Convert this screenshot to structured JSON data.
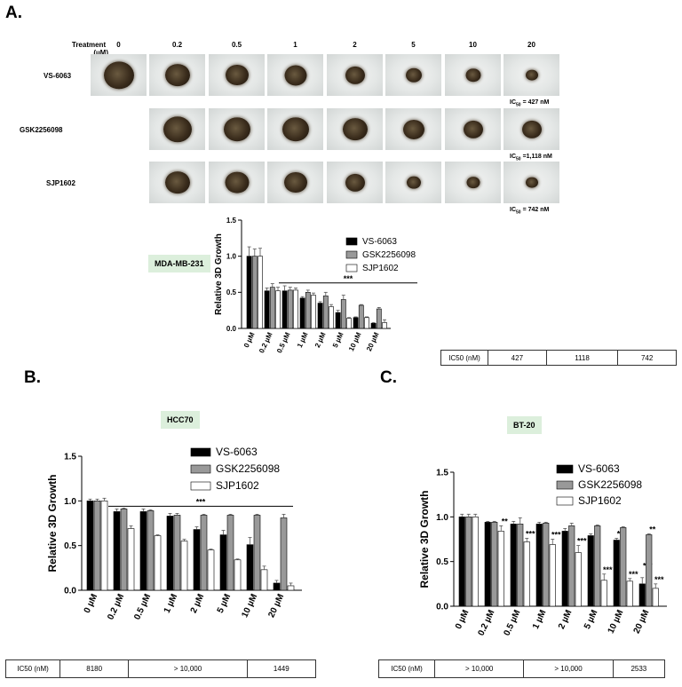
{
  "panels": {
    "a": "A.",
    "b": "B.",
    "c": "C."
  },
  "treatment_header": {
    "label_line1": "Treatment",
    "label_line2": "(µM)",
    "concentrations": [
      "0",
      "0.2",
      "0.5",
      "1",
      "2",
      "5",
      "10",
      "20"
    ]
  },
  "image_rows": [
    {
      "label": "VS-6063",
      "ic50_note": "= 427 nM"
    },
    {
      "label": "GSK2256098",
      "ic50_note": "=1,118 nM"
    },
    {
      "label": "SJP1602",
      "ic50_note": "= 742 nM"
    }
  ],
  "ic50_prefix": "IC",
  "ic50_sub": "50",
  "colors": {
    "vs": "#000000",
    "gsk": "#999999",
    "sjp": "#ffffff",
    "tag": "#dcefdc"
  },
  "chart_data": [
    {
      "type": "bar",
      "cell_line": "MDA-MB-231",
      "ylabel": "Relative 3D Growth",
      "ylim": [
        0,
        1.5
      ],
      "yticks": [
        "0.0",
        "0.5",
        "1.0",
        "1.5"
      ],
      "categories": [
        "0 µM",
        "0.2 µM",
        "0.5 µM",
        "1 µM",
        "2 µM",
        "5 µM",
        "10 µM",
        "20 µM"
      ],
      "series": [
        {
          "name": "VS-6063",
          "values": [
            1.0,
            0.52,
            0.52,
            0.42,
            0.35,
            0.22,
            0.15,
            0.07
          ],
          "errors": [
            0.13,
            0.04,
            0.07,
            0.02,
            0.02,
            0.03,
            0.01,
            0.01
          ]
        },
        {
          "name": "GSK2256098",
          "values": [
            1.0,
            0.57,
            0.53,
            0.5,
            0.45,
            0.4,
            0.32,
            0.27
          ],
          "errors": [
            0.1,
            0.05,
            0.04,
            0.03,
            0.05,
            0.06,
            0.01,
            0.02
          ]
        },
        {
          "name": "SJP1602",
          "values": [
            1.0,
            0.52,
            0.53,
            0.46,
            0.3,
            0.14,
            0.15,
            0.08
          ],
          "errors": [
            0.11,
            0.05,
            0.03,
            0.03,
            0.03,
            0.01,
            0.01,
            0.04
          ]
        }
      ],
      "significance": "***",
      "ic50_table": [
        "IC50 (nM)",
        "427",
        "1118",
        "742"
      ]
    },
    {
      "type": "bar",
      "cell_line": "HCC70",
      "ylabel": "Relative 3D Growth",
      "ylim": [
        0,
        1.5
      ],
      "yticks": [
        "0.0",
        "0.5",
        "1.0",
        "1.5"
      ],
      "categories": [
        "0 µM",
        "0.2 µM",
        "0.5 µM",
        "1 µM",
        "2 µM",
        "5 µM",
        "10 µM",
        "20 µM"
      ],
      "series": [
        {
          "name": "VS-6063",
          "values": [
            1.0,
            0.88,
            0.88,
            0.83,
            0.68,
            0.62,
            0.51,
            0.08
          ],
          "errors": [
            0.02,
            0.03,
            0.03,
            0.03,
            0.03,
            0.05,
            0.08,
            0.03
          ]
        },
        {
          "name": "GSK2256098",
          "values": [
            1.0,
            0.91,
            0.89,
            0.84,
            0.84,
            0.84,
            0.84,
            0.81
          ],
          "errors": [
            0.02,
            0.01,
            0.01,
            0.02,
            0.01,
            0.01,
            0.01,
            0.04
          ]
        },
        {
          "name": "SJP1602",
          "values": [
            1.0,
            0.69,
            0.61,
            0.55,
            0.45,
            0.34,
            0.23,
            0.05
          ],
          "errors": [
            0.03,
            0.03,
            0.01,
            0.02,
            0.01,
            0.01,
            0.04,
            0.03
          ]
        }
      ],
      "significance": "***",
      "ic50_table": [
        "IC50 (nM)",
        "8180",
        "> 10,000",
        "1449"
      ]
    },
    {
      "type": "bar",
      "cell_line": "BT-20",
      "ylabel": "Relative 3D Growth",
      "ylim": [
        0,
        1.5
      ],
      "yticks": [
        "0.0",
        "0.5",
        "1.0",
        "1.5"
      ],
      "categories": [
        "0 µM",
        "0.2 µM",
        "0.5 µM",
        "1 µM",
        "2 µM",
        "5 µM",
        "10 µM",
        "20 µM"
      ],
      "series": [
        {
          "name": "VS-6063",
          "values": [
            1.0,
            0.94,
            0.92,
            0.92,
            0.84,
            0.79,
            0.74,
            0.25
          ],
          "errors": [
            0.03,
            0.01,
            0.03,
            0.02,
            0.03,
            0.02,
            0.02,
            0.07
          ]
        },
        {
          "name": "GSK2256098",
          "values": [
            1.0,
            0.94,
            0.92,
            0.93,
            0.9,
            0.9,
            0.88,
            0.8
          ],
          "errors": [
            0.03,
            0.01,
            0.07,
            0.01,
            0.03,
            0.01,
            0.01,
            0.01
          ]
        },
        {
          "name": "SJP1602",
          "values": [
            1.0,
            0.84,
            0.72,
            0.69,
            0.6,
            0.29,
            0.28,
            0.2
          ],
          "errors": [
            0.03,
            0.06,
            0.04,
            0.06,
            0.08,
            0.07,
            0.03,
            0.05
          ]
        }
      ],
      "significance_marks": {
        "VS-6063": [
          "",
          "",
          "",
          "",
          "",
          "",
          "**",
          ""
        ],
        "GSK2256098": [
          "",
          "",
          "",
          "",
          "",
          "",
          "",
          "**"
        ],
        "SJP1602": [
          "",
          "**",
          "***",
          "***",
          "***",
          "***",
          "***",
          "***"
        ]
      },
      "extra_marks": {
        "VS-6063": [
          "",
          "",
          "",
          "",
          "",
          "",
          "",
          "***"
        ]
      },
      "ic50_table": [
        "IC50 (nM)",
        "> 10,000",
        "> 10,000",
        "2533"
      ]
    }
  ]
}
